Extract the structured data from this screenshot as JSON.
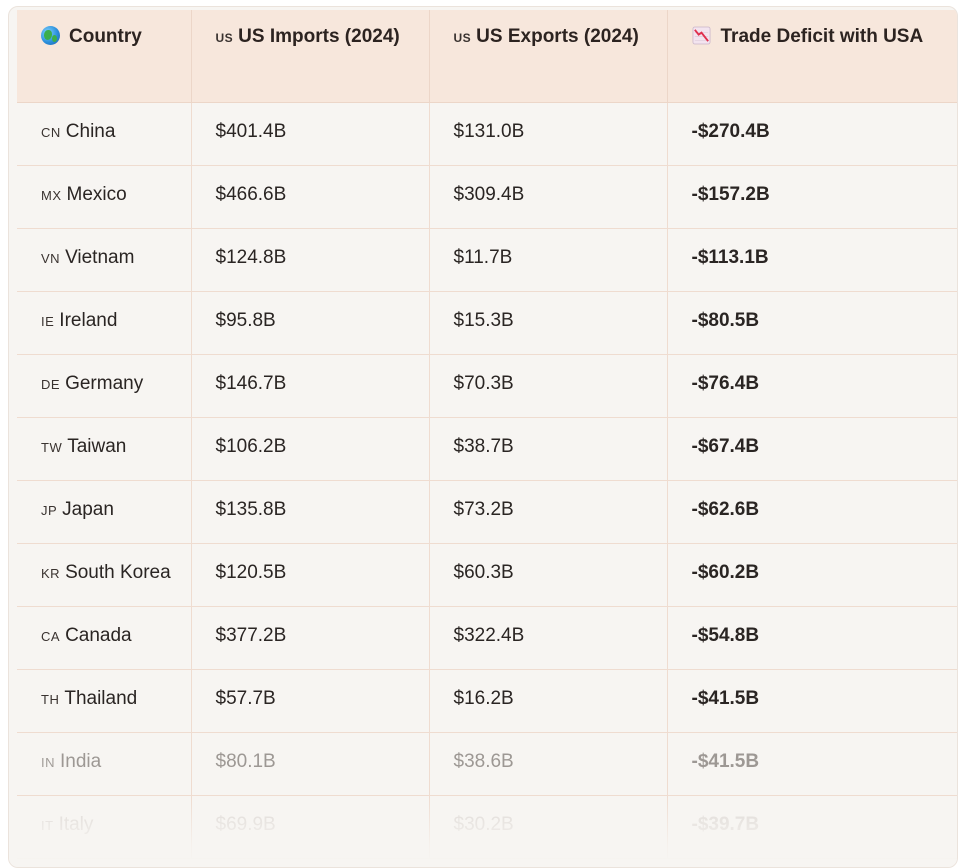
{
  "table": {
    "headers": {
      "country": "Country",
      "imports_code": "US",
      "imports": "US Imports (2024)",
      "exports_code": "US",
      "exports": "US Exports (2024)",
      "deficit": "Trade Deficit with USA"
    },
    "icons": {
      "country": "globe-icon",
      "deficit": "chart-decreasing-icon"
    },
    "rows": [
      {
        "code": "CN",
        "country": "China",
        "imports": "$401.4B",
        "exports": "$131.0B",
        "deficit": "-$270.4B"
      },
      {
        "code": "MX",
        "country": "Mexico",
        "imports": "$466.6B",
        "exports": "$309.4B",
        "deficit": "-$157.2B"
      },
      {
        "code": "VN",
        "country": "Vietnam",
        "imports": "$124.8B",
        "exports": "$11.7B",
        "deficit": "-$113.1B"
      },
      {
        "code": "IE",
        "country": "Ireland",
        "imports": "$95.8B",
        "exports": "$15.3B",
        "deficit": "-$80.5B"
      },
      {
        "code": "DE",
        "country": "Germany",
        "imports": "$146.7B",
        "exports": "$70.3B",
        "deficit": "-$76.4B"
      },
      {
        "code": "TW",
        "country": "Taiwan",
        "imports": "$106.2B",
        "exports": "$38.7B",
        "deficit": "-$67.4B"
      },
      {
        "code": "JP",
        "country": "Japan",
        "imports": "$135.8B",
        "exports": "$73.2B",
        "deficit": "-$62.6B"
      },
      {
        "code": "KR",
        "country": "South Korea",
        "imports": "$120.5B",
        "exports": "$60.3B",
        "deficit": "-$60.2B"
      },
      {
        "code": "CA",
        "country": "Canada",
        "imports": "$377.2B",
        "exports": "$322.4B",
        "deficit": "-$54.8B"
      },
      {
        "code": "TH",
        "country": "Thailand",
        "imports": "$57.7B",
        "exports": "$16.2B",
        "deficit": "-$41.5B"
      },
      {
        "code": "IN",
        "country": "India",
        "imports": "$80.1B",
        "exports": "$38.6B",
        "deficit": "-$41.5B"
      },
      {
        "code": "IT",
        "country": "Italy",
        "imports": "$69.9B",
        "exports": "$30.2B",
        "deficit": "-$39.7B"
      }
    ]
  },
  "colors": {
    "header_bg": "#f7e7dc",
    "body_bg": "#f7f5f2",
    "border": "#efdcd0",
    "text": "#2a2523"
  }
}
